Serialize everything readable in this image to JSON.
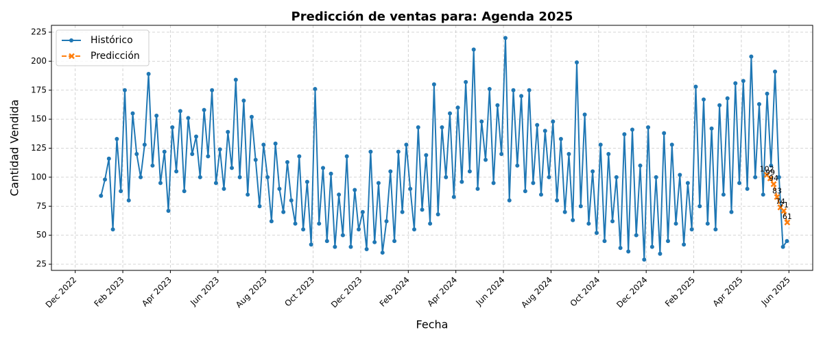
{
  "chart_data": {
    "type": "line",
    "title": "Predicción de ventas para: Agenda 2025",
    "x_label": "Fecha",
    "y_label": "Cantidad Vendida",
    "grid": true,
    "legend": "upper left",
    "xlim": [
      "2022-11",
      "2025-07"
    ],
    "ylim": [
      19.7,
      230.9
    ],
    "yticks": [
      25,
      50,
      75,
      100,
      125,
      150,
      175,
      200,
      225
    ],
    "xticks": [
      {
        "value": "2022-12",
        "label": "Dec 2022"
      },
      {
        "value": "2023-02",
        "label": "Feb 2023"
      },
      {
        "value": "2023-04",
        "label": "Apr 2023"
      },
      {
        "value": "2023-06",
        "label": "Jun 2023"
      },
      {
        "value": "2023-08",
        "label": "Aug 2023"
      },
      {
        "value": "2023-10",
        "label": "Oct 2023"
      },
      {
        "value": "2023-12",
        "label": "Dec 2023"
      },
      {
        "value": "2024-02",
        "label": "Feb 2024"
      },
      {
        "value": "2024-04",
        "label": "Apr 2024"
      },
      {
        "value": "2024-06",
        "label": "Jun 2024"
      },
      {
        "value": "2024-08",
        "label": "Aug 2024"
      },
      {
        "value": "2024-10",
        "label": "Oct 2024"
      },
      {
        "value": "2024-12",
        "label": "Dec 2024"
      },
      {
        "value": "2025-02",
        "label": "Feb 2025"
      },
      {
        "value": "2025-04",
        "label": "Apr 2025"
      },
      {
        "value": "2025-06",
        "label": "Jun 2025"
      }
    ],
    "series": [
      {
        "name": "Histórico",
        "color": "#1f77b4",
        "marker": "o",
        "dashed": false,
        "data_labels": false,
        "x": [
          "2023-01",
          "2023-01",
          "2023-01",
          "2023-01",
          "2023-01",
          "2023-01",
          "2023-02",
          "2023-02",
          "2023-02",
          "2023-02",
          "2023-02",
          "2023-02",
          "2023-03",
          "2023-03",
          "2023-03",
          "2023-03",
          "2023-03",
          "2023-03",
          "2023-04",
          "2023-04",
          "2023-04",
          "2023-04",
          "2023-04",
          "2023-04",
          "2023-05",
          "2023-05",
          "2023-05",
          "2023-05",
          "2023-05",
          "2023-05",
          "2023-06",
          "2023-06",
          "2023-06",
          "2023-06",
          "2023-06",
          "2023-06",
          "2023-07",
          "2023-07",
          "2023-07",
          "2023-07",
          "2023-07",
          "2023-07",
          "2023-08",
          "2023-08",
          "2023-08",
          "2023-08",
          "2023-08",
          "2023-08",
          "2023-09",
          "2023-09",
          "2023-09",
          "2023-09",
          "2023-09",
          "2023-09",
          "2023-10",
          "2023-10",
          "2023-10",
          "2023-10",
          "2023-10",
          "2023-10",
          "2023-11",
          "2023-11",
          "2023-11",
          "2023-11",
          "2023-11",
          "2023-11",
          "2023-12",
          "2023-12",
          "2023-12",
          "2023-12",
          "2023-12",
          "2023-12",
          "2024-01",
          "2024-01",
          "2024-01",
          "2024-01",
          "2024-01",
          "2024-01",
          "2024-02",
          "2024-02",
          "2024-02",
          "2024-02",
          "2024-02",
          "2024-02",
          "2024-03",
          "2024-03",
          "2024-03",
          "2024-03",
          "2024-03",
          "2024-03",
          "2024-04",
          "2024-04",
          "2024-04",
          "2024-04",
          "2024-04",
          "2024-04",
          "2024-05",
          "2024-05",
          "2024-05",
          "2024-05",
          "2024-05",
          "2024-05",
          "2024-06",
          "2024-06",
          "2024-06",
          "2024-06",
          "2024-06",
          "2024-06",
          "2024-07",
          "2024-07",
          "2024-07",
          "2024-07",
          "2024-07",
          "2024-07",
          "2024-08",
          "2024-08",
          "2024-08",
          "2024-08",
          "2024-08",
          "2024-08",
          "2024-09",
          "2024-09",
          "2024-09",
          "2024-09",
          "2024-09",
          "2024-09",
          "2024-10",
          "2024-10",
          "2024-10",
          "2024-10",
          "2024-10",
          "2024-10",
          "2024-11",
          "2024-11",
          "2024-11",
          "2024-11",
          "2024-11",
          "2024-11",
          "2024-12",
          "2024-12",
          "2024-12",
          "2024-12",
          "2024-12",
          "2024-12",
          "2025-01",
          "2025-01",
          "2025-01",
          "2025-01",
          "2025-01",
          "2025-01",
          "2025-02",
          "2025-02",
          "2025-02",
          "2025-02",
          "2025-02",
          "2025-02",
          "2025-03",
          "2025-03",
          "2025-03",
          "2025-03",
          "2025-03",
          "2025-03",
          "2025-04",
          "2025-04",
          "2025-04",
          "2025-04",
          "2025-04",
          "2025-04",
          "2025-05",
          "2025-05",
          "2025-05",
          "2025-05",
          "2025-05",
          "2025-05"
        ],
        "values": [
          84,
          98,
          116,
          55,
          133,
          88,
          175,
          80,
          155,
          120,
          100,
          128,
          189,
          110,
          153,
          95,
          122,
          71,
          143,
          105,
          157,
          88,
          151,
          120,
          135,
          100,
          158,
          118,
          175,
          95,
          124,
          90,
          139,
          108,
          184,
          100,
          166,
          85,
          152,
          115,
          75,
          128,
          100,
          62,
          129,
          90,
          70,
          113,
          80,
          60,
          118,
          55,
          96,
          42,
          176,
          60,
          108,
          45,
          103,
          40,
          85,
          50,
          118,
          40,
          89,
          55,
          70,
          38,
          122,
          44,
          95,
          35,
          62,
          105,
          45,
          122,
          70,
          128,
          90,
          55,
          143,
          72,
          119,
          60,
          180,
          68,
          143,
          100,
          155,
          83,
          160,
          96,
          182,
          105,
          210,
          90,
          148,
          115,
          176,
          95,
          162,
          120,
          220,
          80,
          175,
          110,
          170,
          88,
          175,
          95,
          145,
          85,
          140,
          100,
          148,
          80,
          133,
          70,
          120,
          63,
          199,
          75,
          154,
          60,
          105,
          52,
          128,
          45,
          120,
          62,
          100,
          39,
          137,
          36,
          141,
          50,
          110,
          29,
          143,
          40,
          100,
          34,
          138,
          45,
          128,
          60,
          102,
          42,
          95,
          55,
          178,
          75,
          167,
          60,
          142,
          55,
          162,
          85,
          168,
          70,
          181,
          95,
          183,
          90,
          204,
          100,
          163,
          85,
          172,
          110,
          191,
          100,
          40,
          45
        ]
      },
      {
        "name": "Predicción",
        "color": "#ff7f0e",
        "marker": "x",
        "dashed": true,
        "data_labels": true,
        "x": [
          "2025-05",
          "2025-05",
          "2025-05",
          "2025-05",
          "2025-05",
          "2025-05",
          "2025-05"
        ],
        "values": [
          102,
          99,
          94,
          83,
          74,
          71,
          61
        ]
      }
    ]
  }
}
